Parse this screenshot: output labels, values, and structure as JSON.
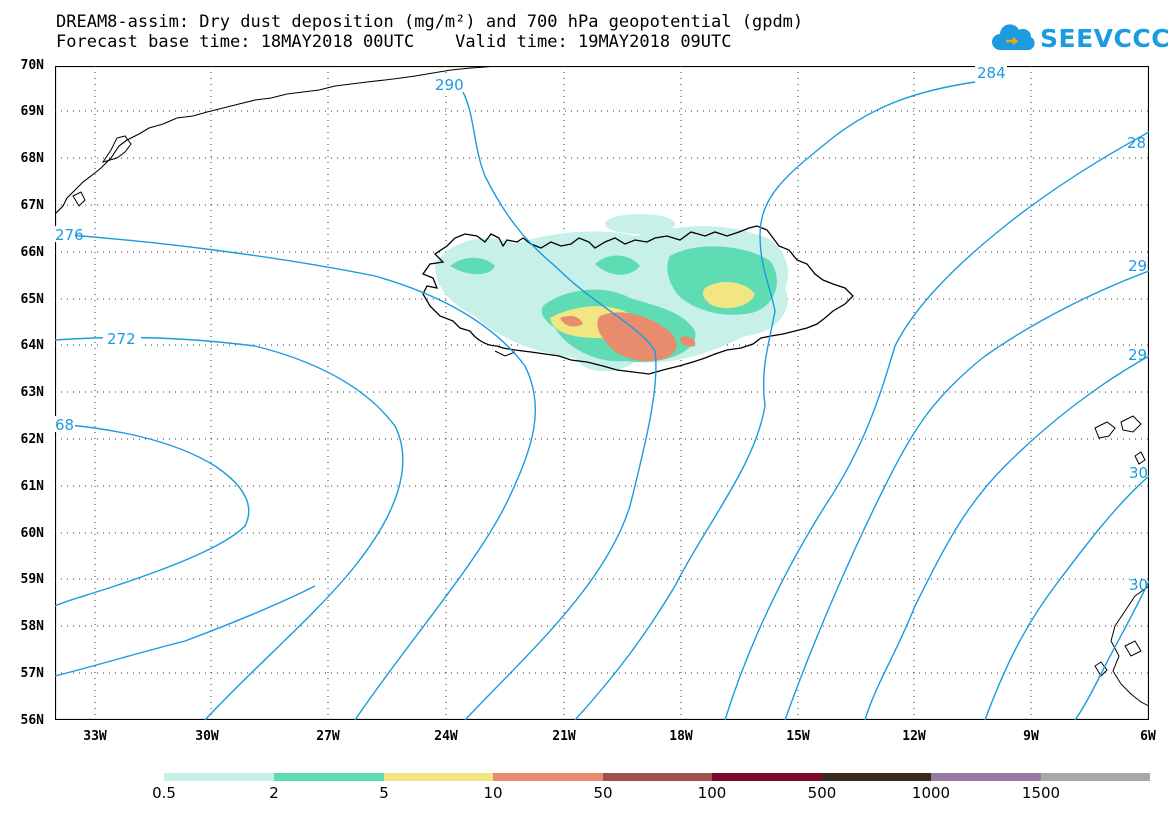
{
  "header": {
    "line1": "DREAM8-assim: Dry dust deposition (mg/m²) and 700 hPa geopotential (gpdm)",
    "line2": "Forecast base time: 18MAY2018 00UTC    Valid time: 19MAY2018 09UTC"
  },
  "logo": {
    "text": "SEEVCCC",
    "color": "#1c9be0",
    "icon": "cloud-icon"
  },
  "map": {
    "lon_range": [
      -34,
      -6
    ],
    "lat_range": [
      56,
      70
    ],
    "lat_labels": [
      "70N",
      "69N",
      "68N",
      "67N",
      "66N",
      "65N",
      "64N",
      "63N",
      "62N",
      "61N",
      "60N",
      "59N",
      "58N",
      "57N",
      "56N"
    ],
    "lon_labels": [
      "33W",
      "30W",
      "27W",
      "24W",
      "21W",
      "18W",
      "15W",
      "12W",
      "9W",
      "6W"
    ],
    "contour_color": "#1c9be0",
    "contour_labels": [
      "290",
      "284",
      "28",
      "29",
      "29",
      "30",
      "30",
      "276",
      "272",
      "68"
    ]
  },
  "legend": {
    "colors": [
      "#c6f0e8",
      "#5fdcb4",
      "#f2e682",
      "#e88c6e",
      "#a0504a",
      "#7a0a2a",
      "#3a2a1e",
      "#9a7aa2",
      "#a8a8a8"
    ],
    "labels": [
      "0.5",
      "2",
      "5",
      "10",
      "50",
      "100",
      "500",
      "1000",
      "1500"
    ]
  }
}
